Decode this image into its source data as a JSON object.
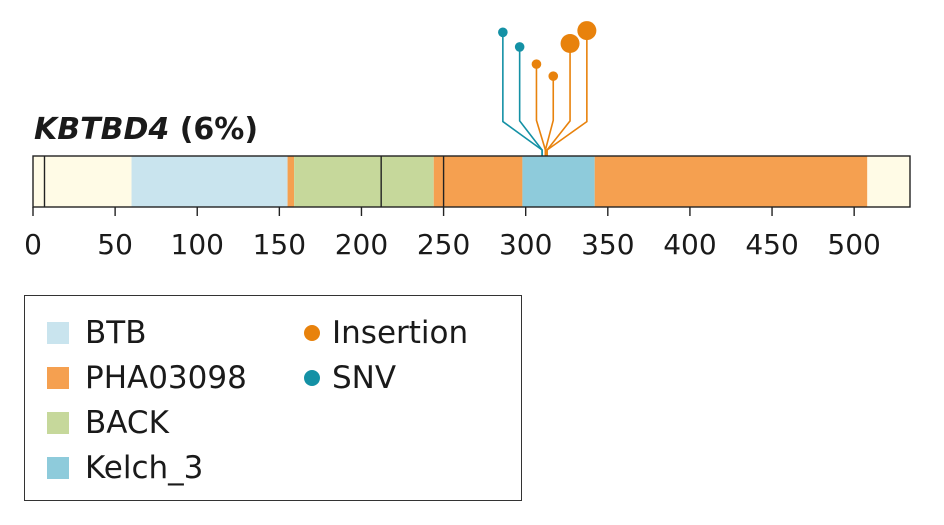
{
  "chart_data": {
    "type": "lollipop",
    "title": "KBTBD4 (6%)",
    "gene": "KBTBD4",
    "frequency": "(6%)",
    "protein_length": 534,
    "xlim": [
      0,
      534
    ],
    "xticks": [
      0,
      50,
      100,
      150,
      200,
      250,
      300,
      350,
      400,
      450,
      500
    ],
    "regions": [
      {
        "start": 0,
        "end": 60,
        "color": "#fffbe6"
      },
      {
        "start": 60,
        "end": 155,
        "domain": "BTB",
        "color": "#c9e4ee"
      },
      {
        "start": 155,
        "end": 159,
        "domain": "PHA03098",
        "color": "#f5a050"
      },
      {
        "start": 159,
        "end": 244,
        "domain": "BACK",
        "color": "#c6d89b"
      },
      {
        "start": 244,
        "end": 298,
        "domain": "PHA03098",
        "color": "#f5a050"
      },
      {
        "start": 298,
        "end": 342,
        "domain": "Kelch_3",
        "color": "#8ecbdb"
      },
      {
        "start": 342,
        "end": 508,
        "domain": "PHA03098",
        "color": "#f5a050"
      },
      {
        "start": 508,
        "end": 534,
        "color": "#fffbe6"
      }
    ],
    "boundaries": [
      7,
      212,
      250
    ],
    "mutations": [
      {
        "position": 310,
        "type": "SNV",
        "height": 0.95,
        "size": 1
      },
      {
        "position": 310,
        "type": "SNV",
        "height": 0.78,
        "size": 1
      },
      {
        "position": 312,
        "type": "Insertion",
        "height": 0.58,
        "size": 1
      },
      {
        "position": 312,
        "type": "Insertion",
        "height": 0.44,
        "size": 1
      },
      {
        "position": 313,
        "type": "Insertion",
        "height": 0.82,
        "size": 2
      },
      {
        "position": 313,
        "type": "Insertion",
        "height": 0.97,
        "size": 2
      }
    ],
    "legend": {
      "domains": [
        {
          "label": "BTB",
          "color": "#c9e4ee"
        },
        {
          "label": "PHA03098",
          "color": "#f5a050"
        },
        {
          "label": "BACK",
          "color": "#c6d89b"
        },
        {
          "label": "Kelch_3",
          "color": "#8ecbdb"
        }
      ],
      "types": [
        {
          "label": "Insertion",
          "color": "#e8820c"
        },
        {
          "label": "SNV",
          "color": "#1491a5"
        }
      ]
    }
  }
}
